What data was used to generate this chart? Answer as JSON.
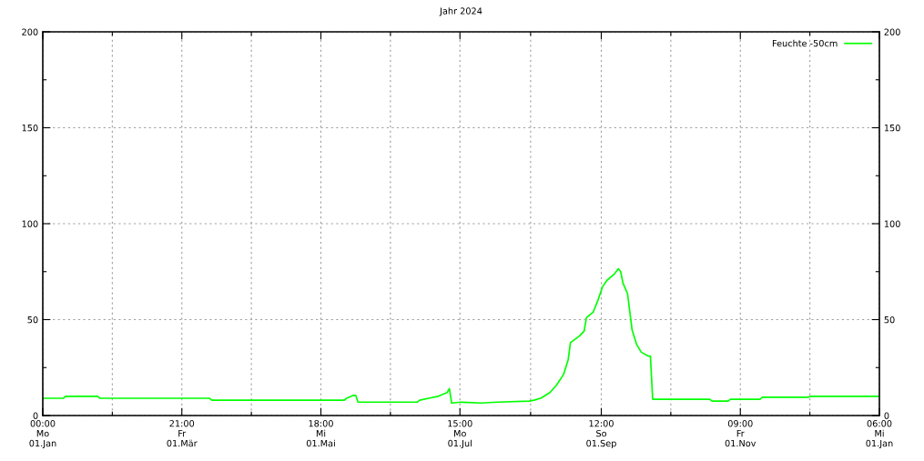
{
  "chart_data": {
    "type": "line",
    "title": "Jahr 2024",
    "xlim": [
      "2024-01-01T00:00",
      "2025-01-01T06:00"
    ],
    "xticks": [
      {
        "value": "2024-01-01T00:00",
        "label": "00:00\nMo\n01.Jan"
      },
      {
        "value": "2024-01-31T10:30",
        "label": null
      },
      {
        "value": "2024-03-01T21:00",
        "label": "21:00\nFr\n01.Mär"
      },
      {
        "value": "2024-04-01T07:30",
        "label": null
      },
      {
        "value": "2024-05-01T18:00",
        "label": "18:00\nMi\n01.Mai"
      },
      {
        "value": "2024-06-01T04:30",
        "label": null
      },
      {
        "value": "2024-07-01T15:00",
        "label": "15:00\nMo\n01.Jul"
      },
      {
        "value": "2024-08-01T13:30",
        "label": null
      },
      {
        "value": "2024-09-01T12:00",
        "label": "12:00\nSo\n01.Sep"
      },
      {
        "value": "2024-10-01T22:30",
        "label": null
      },
      {
        "value": "2024-11-01T09:00",
        "label": "09:00\nFr\n01.Nov"
      },
      {
        "value": "2024-12-01T19:30",
        "label": null
      },
      {
        "value": "2025-01-01T06:00",
        "label": "06:00\nMi\n01.Jan"
      }
    ],
    "ylim": [
      0,
      200
    ],
    "yticks": [
      0,
      {
        "value": 25,
        "label": null
      },
      50,
      {
        "value": 75,
        "label": null
      },
      100,
      {
        "value": 125,
        "label": null
      },
      150,
      {
        "value": 175,
        "label": null
      },
      200
    ],
    "y2lim": [
      0,
      200
    ],
    "y2ticks": [
      0,
      {
        "value": 25,
        "label": null
      },
      50,
      {
        "value": 75,
        "label": null
      },
      100,
      {
        "value": 125,
        "label": null
      },
      150,
      {
        "value": 175,
        "label": null
      },
      200
    ],
    "grid": true,
    "legend": "top right",
    "marker": "none",
    "line_style": "solid",
    "series": [
      {
        "name": "Feuchte -50cm",
        "color": "#00ff00",
        "x": [
          "2024-01-01",
          "2024-01-10",
          "2024-01-11",
          "2024-01-25",
          "2024-01-26",
          "2024-03-14",
          "2024-03-15",
          "2024-05-12",
          "2024-05-13",
          "2024-05-16",
          "2024-05-17",
          "2024-05-18",
          "2024-06-13",
          "2024-06-14",
          "2024-06-18",
          "2024-06-22",
          "2024-06-24",
          "2024-06-26",
          "2024-06-27",
          "2024-06-28",
          "2024-07-02",
          "2024-07-11",
          "2024-07-18",
          "2024-08-01",
          "2024-08-03",
          "2024-08-06",
          "2024-08-10",
          "2024-08-13",
          "2024-08-16",
          "2024-08-18",
          "2024-08-19",
          "2024-08-23",
          "2024-08-25",
          "2024-08-26",
          "2024-08-29",
          "2024-08-31",
          "2024-09-02",
          "2024-09-04",
          "2024-09-07",
          "2024-09-09",
          "2024-09-10",
          "2024-09-11",
          "2024-09-13",
          "2024-09-14",
          "2024-09-15",
          "2024-09-17",
          "2024-09-19",
          "2024-09-22",
          "2024-09-23",
          "2024-09-24",
          "2024-10-19",
          "2024-10-20",
          "2024-10-27",
          "2024-10-28",
          "2024-11-10",
          "2024-11-11",
          "2024-12-01",
          "2024-12-02",
          "2025-01-01T06:00"
        ],
        "values": [
          9,
          9,
          10,
          10,
          9,
          9,
          8,
          8,
          9,
          10.5,
          10.5,
          7,
          7,
          8,
          9,
          10,
          11,
          12,
          14,
          6.5,
          7,
          6.5,
          7,
          7.5,
          8,
          9,
          12,
          16,
          21.5,
          29,
          38,
          41.5,
          44,
          51,
          54,
          60,
          67,
          70.5,
          73.5,
          76.5,
          75,
          69,
          63.5,
          54,
          44.5,
          37,
          33,
          31,
          31,
          8.5,
          8.5,
          7.5,
          7.5,
          8.5,
          8.5,
          9.5,
          9.5,
          10,
          10
        ]
      }
    ]
  }
}
